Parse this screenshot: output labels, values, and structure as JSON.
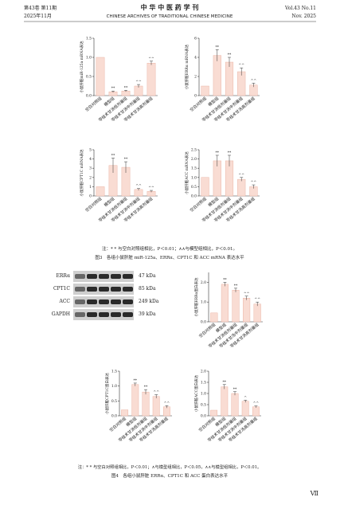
{
  "header": {
    "left_top": "第43卷 第11期",
    "left_bottom": "2025年11月",
    "title": "中 华 中 医 药 学 刊",
    "subtitle": "CHINESE ARCHIVES OF TRADITIONAL CHINESE MEDICINE",
    "right_top": "Vol.43 No.11",
    "right_bottom": "Nov. 2025"
  },
  "figure3": {
    "note": "注：* * 与空白对照组相比，P＜0.01；∧∧与模型组相比，P＜0.01。",
    "caption": "图3　各组小鼠肝脏 miR-125a、ERRα、CPT1C 和 ACC mRNA 表达水平"
  },
  "blot": {
    "proteins": [
      "ERRα",
      "CPT1C",
      "ACC",
      "GAPDH"
    ],
    "sizes": [
      "47 kDa",
      "85 kDa",
      "249 kDa",
      "39 kDa"
    ]
  },
  "figure4": {
    "note": "注：* * 与空白对照组相比，P＜0.01；∧与模型组相比，P＜0.05，∧∧与模型组相比，P＜0.01。",
    "caption": "图4　各组小鼠肝脏 ERRα、CPT1C 和 ACC 蛋白表达水平"
  },
  "page_number": "Ⅶ",
  "chart_data": [
    {
      "type": "bar",
      "y_label": "小鼠肝脏miR-125a mRNA表达",
      "categories": [
        "空白对照组",
        "模型组",
        "苓桂术甘汤低剂量组",
        "苓桂术甘汤中剂量组",
        "苓桂术甘汤高剂量组"
      ],
      "values": [
        1.0,
        0.1,
        0.12,
        0.25,
        0.85
      ],
      "errors": [
        0,
        0.02,
        0.02,
        0.04,
        0.05
      ],
      "annotations": [
        null,
        "**",
        "**",
        "^^",
        "^^"
      ],
      "color": "#f9dcd3",
      "ylim": [
        0,
        1.5
      ],
      "yticks": [
        {
          "value": 0,
          "label": "0.0"
        },
        {
          "value": 0.5,
          "label": "0.5"
        },
        {
          "value": 1,
          "label": "1.0"
        },
        {
          "value": 1.5,
          "label": "1.5"
        }
      ]
    },
    {
      "type": "bar",
      "y_label": "小鼠肝脏ERRα mRNA表达",
      "categories": [
        "空白对照组",
        "模型组",
        "苓桂术甘汤低剂量组",
        "苓桂术甘汤中剂量组",
        "苓桂术甘汤高剂量组"
      ],
      "values": [
        1.0,
        4.2,
        3.5,
        2.5,
        1.1
      ],
      "errors": [
        0,
        0.6,
        0.5,
        0.4,
        0.2
      ],
      "annotations": [
        null,
        "**",
        "**",
        "^^",
        "^^"
      ],
      "color": "#f9dcd3",
      "ylim": [
        0,
        6
      ],
      "yticks": [
        0,
        2,
        4,
        6
      ]
    },
    {
      "type": "bar",
      "y_label": "小鼠肝脏CPT1C mRNA表达",
      "categories": [
        "空白对照组",
        "模型组",
        "苓桂术甘汤低剂量组",
        "苓桂术甘汤中剂量组",
        "苓桂术甘汤高剂量组"
      ],
      "values": [
        1.0,
        3.3,
        3.1,
        0.7,
        0.5
      ],
      "errors": [
        0,
        0.8,
        0.6,
        0.1,
        0.1
      ],
      "annotations": [
        null,
        "**",
        "**",
        "^^",
        "^^"
      ],
      "color": "#f9dcd3",
      "ylim": [
        0,
        5
      ],
      "yticks": [
        0,
        1,
        2,
        3,
        4,
        5
      ]
    },
    {
      "type": "bar",
      "y_label": "小鼠肝脏ACC mRNA表达",
      "categories": [
        "空白对照组",
        "模型组",
        "苓桂术甘汤低剂量组",
        "苓桂术甘汤中剂量组",
        "苓桂术甘汤高剂量组"
      ],
      "values": [
        1.0,
        1.9,
        1.9,
        0.9,
        0.5
      ],
      "errors": [
        0,
        0.3,
        0.3,
        0.1,
        0.1
      ],
      "annotations": [
        null,
        "**",
        "**",
        "^^",
        "^^"
      ],
      "color": "#f9dcd3",
      "ylim": [
        0,
        2.5
      ],
      "yticks": [
        {
          "value": 0,
          "label": "0.0"
        },
        {
          "value": 0.5,
          "label": "0.5"
        },
        {
          "value": 1,
          "label": "1.0"
        },
        {
          "value": 1.5,
          "label": "1.5"
        },
        {
          "value": 2,
          "label": "2.0"
        },
        {
          "value": 2.5,
          "label": "2.5"
        }
      ]
    },
    {
      "type": "bar",
      "y_label": "小鼠肝脏ERRα蛋白表达",
      "categories": [
        "空白对照组",
        "模型组",
        "苓桂术甘汤低剂量组",
        "苓桂术甘汤中剂量组",
        "苓桂术甘汤高剂量组"
      ],
      "values": [
        0.45,
        1.9,
        1.6,
        1.2,
        0.9
      ],
      "errors": [
        0,
        0.1,
        0.1,
        0.1,
        0.1
      ],
      "annotations": [
        null,
        "**",
        "**",
        "^^",
        "^^"
      ],
      "color": "#f9dcd3",
      "ylim": [
        0,
        2.5
      ],
      "yticks": [
        {
          "value": 0,
          "label": "0.0"
        },
        {
          "value": 1,
          "label": "1.0"
        },
        {
          "value": 2,
          "label": "2.0"
        }
      ]
    },
    {
      "type": "bar",
      "y_label": "小鼠肝脏CPT1C蛋白表达",
      "categories": [
        "空白对照组",
        "模型组",
        "苓桂术甘汤低剂量组",
        "苓桂术甘汤中剂量组",
        "苓桂术甘汤高剂量组"
      ],
      "values": [
        0.2,
        1.05,
        0.8,
        0.65,
        0.3
      ],
      "errors": [
        0,
        0.05,
        0.08,
        0.06,
        0.04
      ],
      "annotations": [
        null,
        "**",
        "**",
        "^^",
        "^^"
      ],
      "color": "#f9dcd3",
      "ylim": [
        0,
        1.5
      ],
      "yticks": [
        {
          "value": 0,
          "label": "0.0"
        },
        {
          "value": 0.5,
          "label": "0.5"
        },
        {
          "value": 1,
          "label": "1.0"
        },
        {
          "value": 1.5,
          "label": "1.5"
        }
      ]
    },
    {
      "type": "bar",
      "y_label": "小鼠肝脏ACC蛋白表达",
      "categories": [
        "空白对照组",
        "模型组",
        "苓桂术甘汤低剂量组",
        "苓桂术甘汤中剂量组",
        "苓桂术甘汤高剂量组"
      ],
      "values": [
        0.25,
        1.3,
        1.0,
        0.65,
        0.4
      ],
      "errors": [
        0,
        0.1,
        0.08,
        0.05,
        0.04
      ],
      "annotations": [
        null,
        "**",
        "**",
        "^",
        "^^"
      ],
      "color": "#f9dcd3",
      "ylim": [
        0,
        2
      ],
      "yticks": [
        {
          "value": 0,
          "label": "0.0"
        },
        {
          "value": 0.5,
          "label": "0.5"
        },
        {
          "value": 1,
          "label": "1.0"
        },
        {
          "value": 1.5,
          "label": "1.5"
        },
        {
          "value": 2,
          "label": "2.0"
        }
      ]
    }
  ]
}
